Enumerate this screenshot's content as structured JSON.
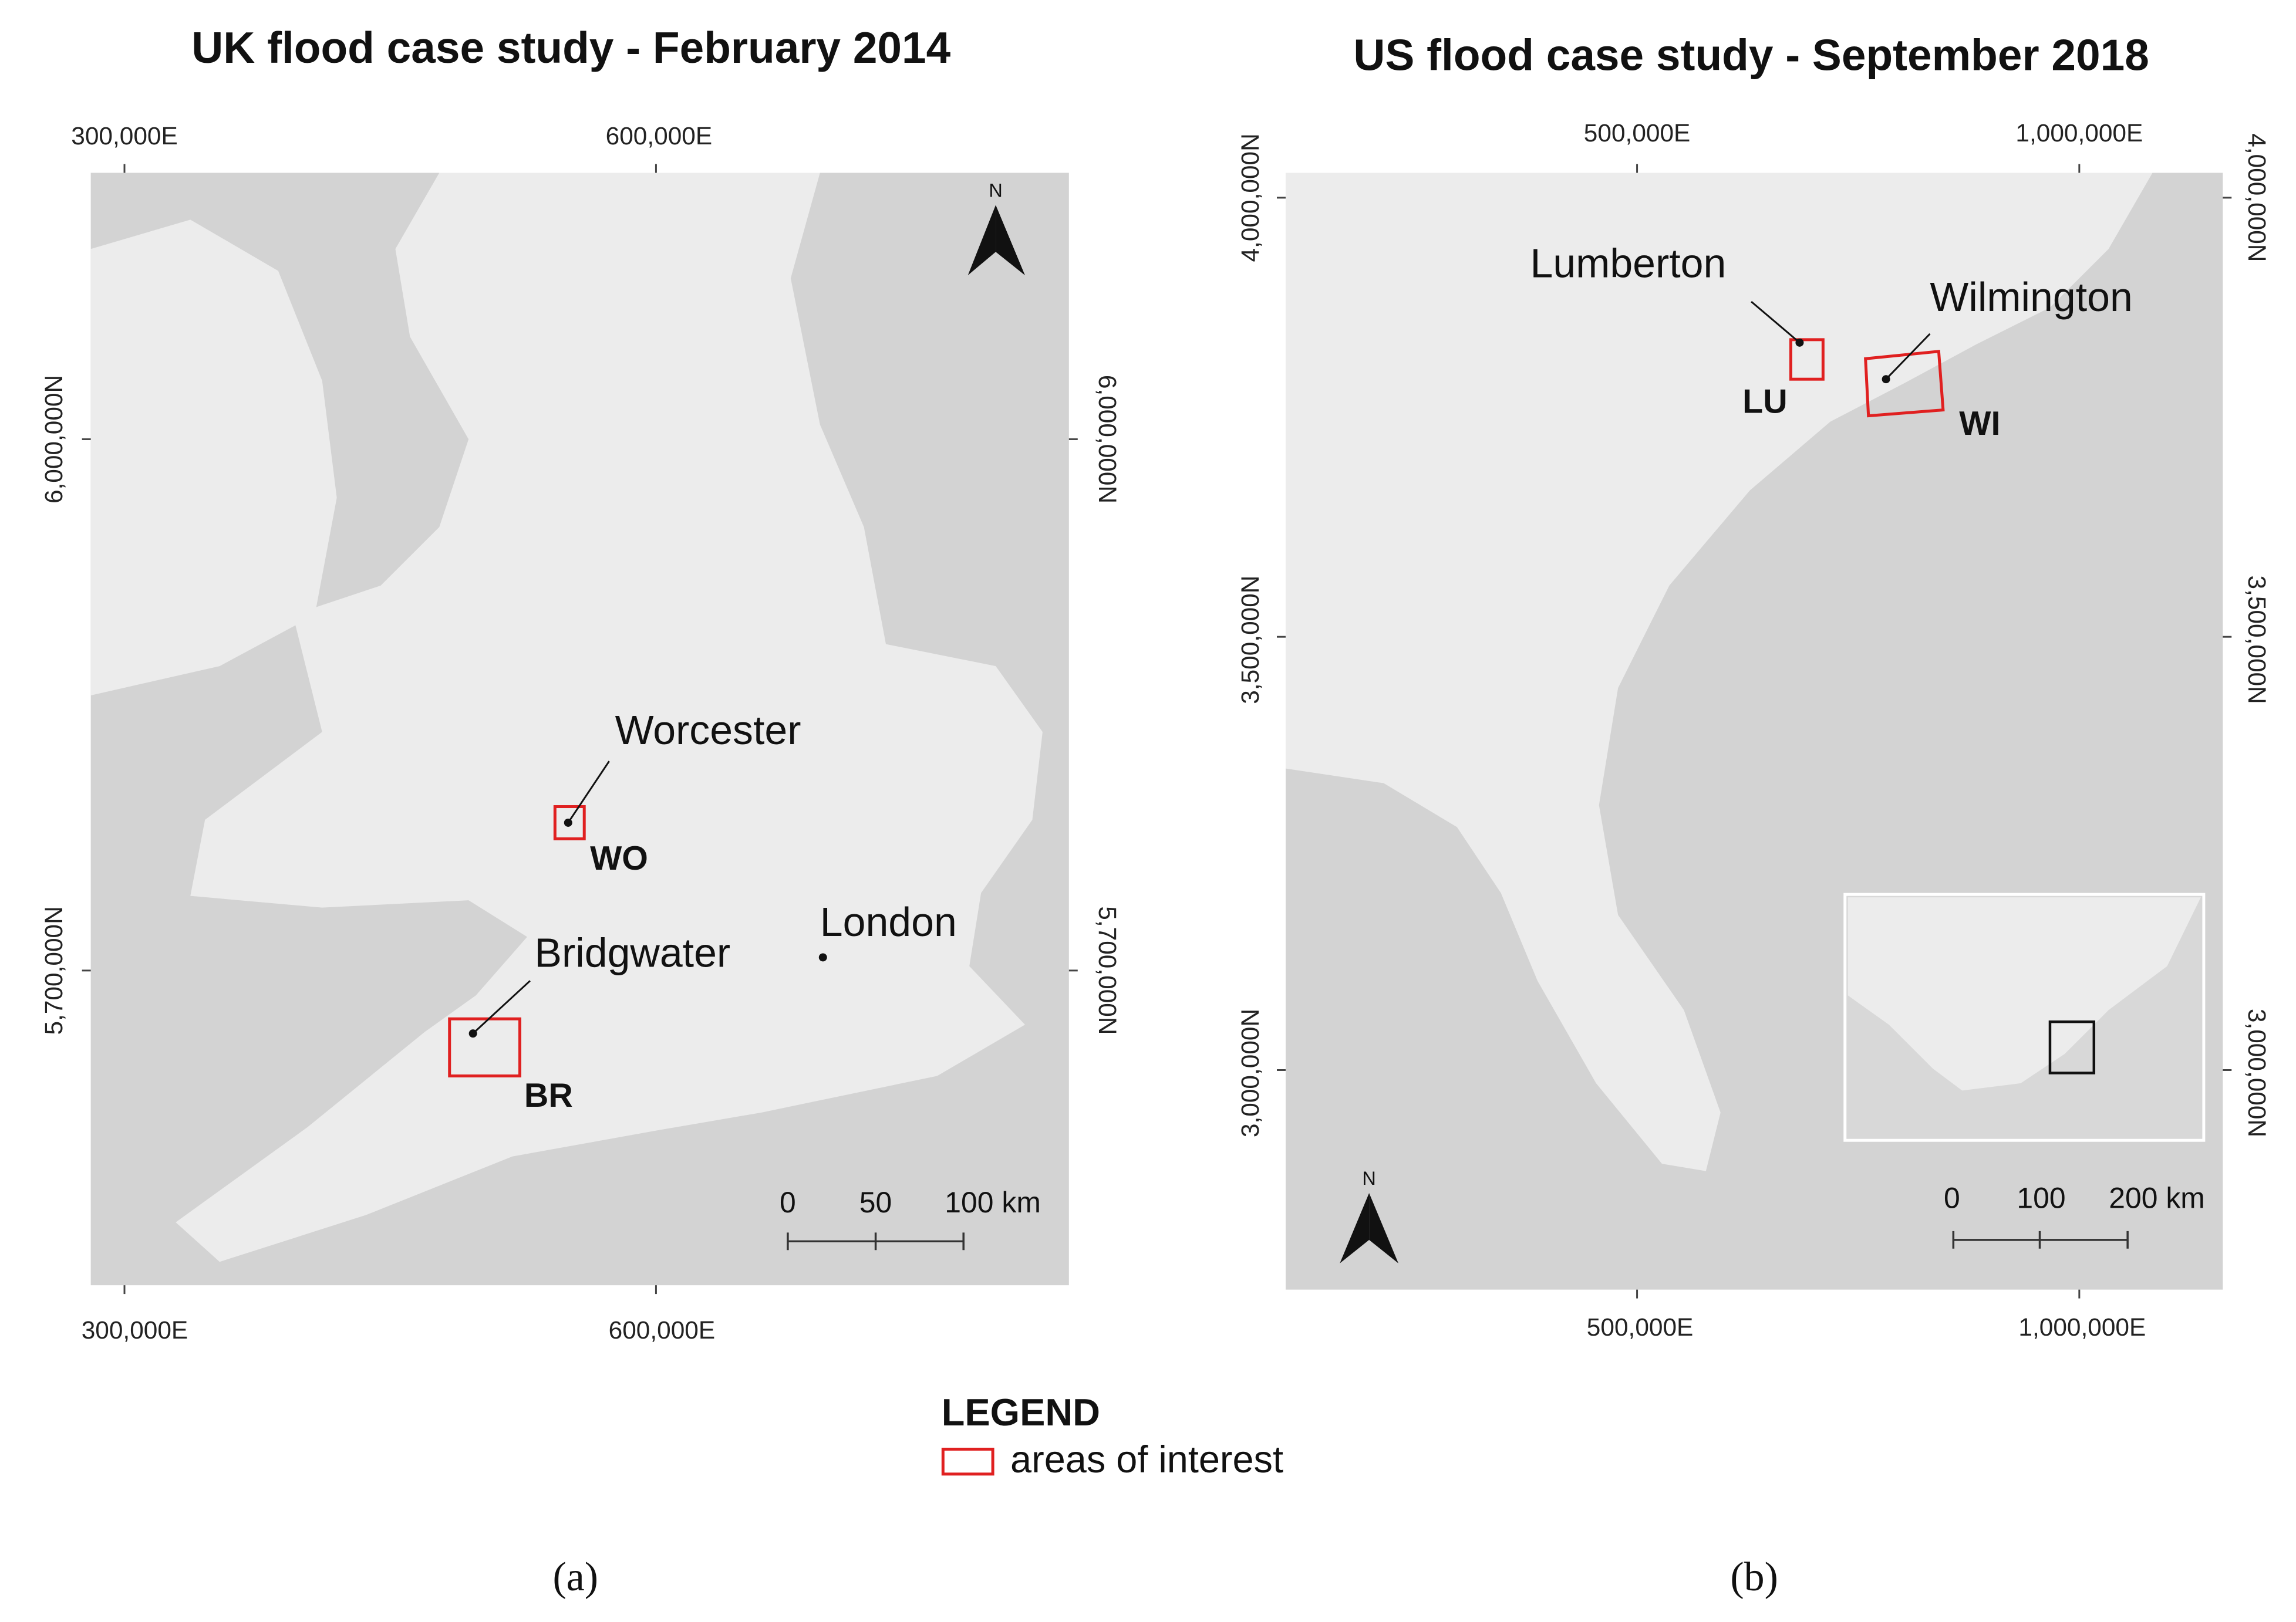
{
  "uk_map": {
    "title": "UK flood case study - February 2014",
    "top_labels": [
      "300,000E",
      "600,000E"
    ],
    "bottom_labels": [
      "300,000E",
      "600,000E"
    ],
    "left_labels": [
      "6,000,000N",
      "5,700,000N"
    ],
    "right_labels": [
      "6,000,000N",
      "5,700,000N"
    ],
    "north": "N",
    "places": [
      {
        "name": "Worcester",
        "code": "WO"
      },
      {
        "name": "Bridgwater",
        "code": "BR"
      },
      {
        "name": "London"
      }
    ],
    "scale_bar": [
      "0",
      "50",
      "100 km"
    ],
    "caption": "(a)"
  },
  "us_map": {
    "title": "US flood case study - September 2018",
    "top_labels": [
      "500,000E",
      "1,000,000E"
    ],
    "bottom_labels": [
      "500,000E",
      "1,000,000E"
    ],
    "left_labels": [
      "4,000,000N",
      "3,500,000N",
      "3,000,000N"
    ],
    "right_labels": [
      "4,000,000N",
      "3,500,000N",
      "3,000,000N"
    ],
    "north": "N",
    "places": [
      {
        "name": "Lumberton",
        "code": "LU"
      },
      {
        "name": "Wilmington",
        "code": "WI"
      }
    ],
    "scale_bar": [
      "0",
      "100",
      "200 km"
    ],
    "caption": "(b)"
  },
  "legend": {
    "title": "LEGEND",
    "item": "areas of interest"
  }
}
